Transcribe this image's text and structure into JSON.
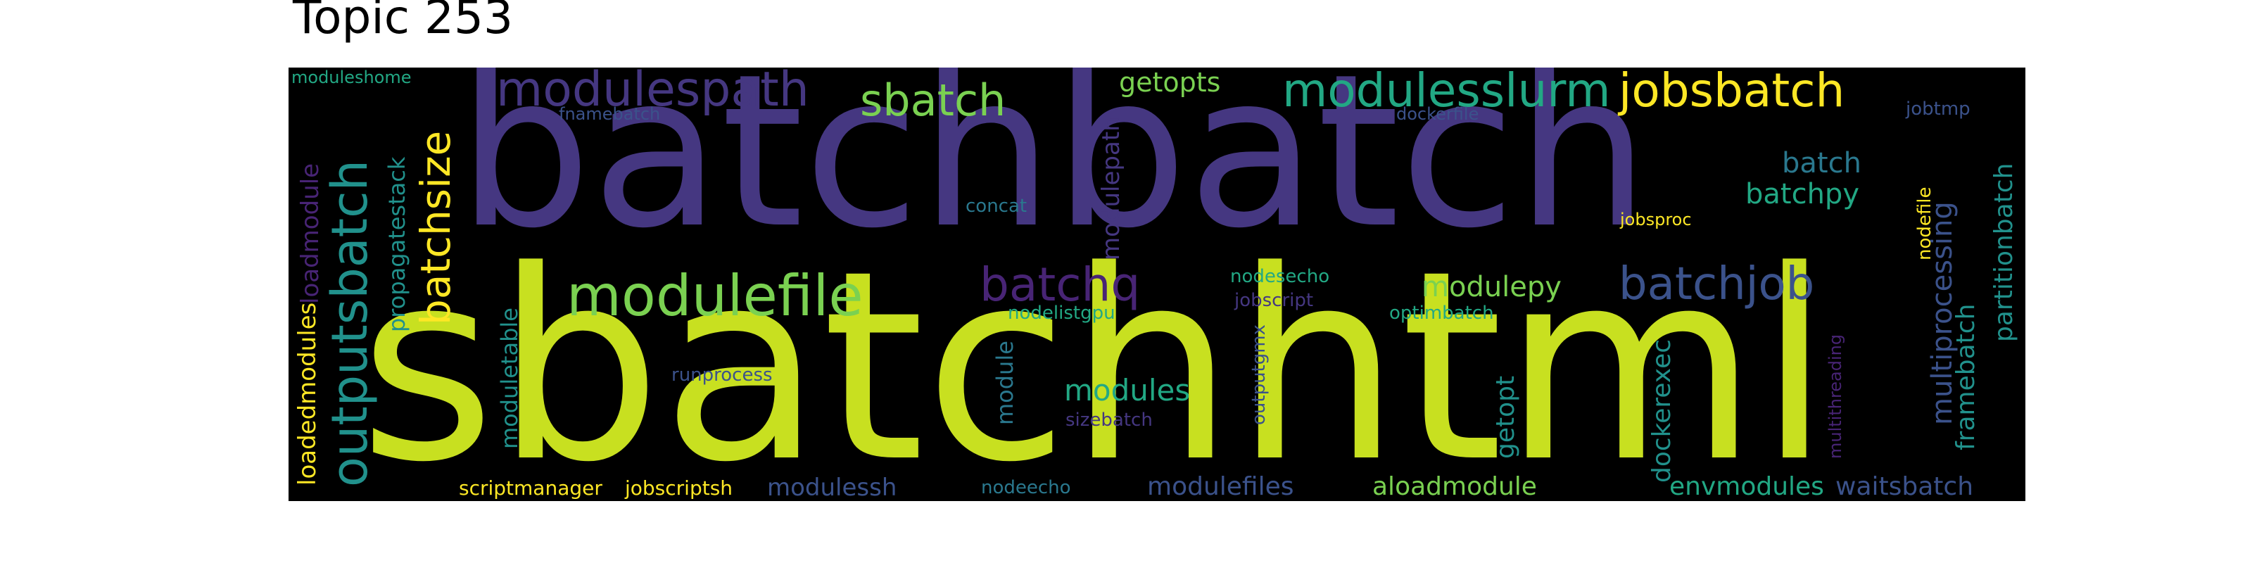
{
  "title": "Topic 253",
  "colors": {
    "background": "#000000",
    "yellow_green": "#c8e020",
    "indigo": "#453781",
    "teal": "#21918c",
    "green": "#5ec962",
    "purple": "#482475",
    "dark_blue": "#3b528b",
    "yellow": "#fde725"
  },
  "words": [
    {
      "text": "batchbatch",
      "color": "#453781"
    },
    {
      "text": "sbatchhtml",
      "color": "#c8e020"
    },
    {
      "text": "modulefile",
      "color": "#7ad151"
    },
    {
      "text": "outputsbatch",
      "color": "#21918c"
    },
    {
      "text": "batchsize",
      "color": "#fde725"
    },
    {
      "text": "modulespath",
      "color": "#453781"
    },
    {
      "text": "sbatch",
      "color": "#7ad151"
    },
    {
      "text": "modulesslurm",
      "color": "#22a884"
    },
    {
      "text": "jobsbatch",
      "color": "#fde725"
    },
    {
      "text": "batchq",
      "color": "#482475"
    },
    {
      "text": "batchjob",
      "color": "#3b528b"
    },
    {
      "text": "modulepy",
      "color": "#7ad151"
    },
    {
      "text": "modules",
      "color": "#22a884"
    },
    {
      "text": "modulepath",
      "color": "#453781"
    },
    {
      "text": "getopts",
      "color": "#7ad151"
    },
    {
      "text": "batch",
      "color": "#2a788e"
    },
    {
      "text": "batchpy",
      "color": "#22a884"
    },
    {
      "text": "multiprocessing",
      "color": "#3b528b"
    },
    {
      "text": "partitionbatch",
      "color": "#21918c"
    },
    {
      "text": "framebatch",
      "color": "#21918c"
    },
    {
      "text": "envmodules",
      "color": "#22a884"
    },
    {
      "text": "waitsbatch",
      "color": "#3b528b"
    },
    {
      "text": "aloadmodule",
      "color": "#7ad151"
    },
    {
      "text": "modulefiles",
      "color": "#3b528b"
    },
    {
      "text": "modulessh",
      "color": "#3b528b"
    },
    {
      "text": "dockerexec",
      "color": "#21918c"
    },
    {
      "text": "getopt",
      "color": "#21918c"
    },
    {
      "text": "module",
      "color": "#2a788e"
    },
    {
      "text": "loadedmodules",
      "color": "#fde725"
    },
    {
      "text": "loadmodule",
      "color": "#482475"
    },
    {
      "text": "propagatestack",
      "color": "#21918c"
    },
    {
      "text": "moduletable",
      "color": "#21918c"
    },
    {
      "text": "moduleshome",
      "color": "#22a884"
    },
    {
      "text": "fnamebatch",
      "color": "#3b528b"
    },
    {
      "text": "dockerfile",
      "color": "#3b528b"
    },
    {
      "text": "jobtmp",
      "color": "#3b528b"
    },
    {
      "text": "concat",
      "color": "#2a788e"
    },
    {
      "text": "jobsproc",
      "color": "#fde725"
    },
    {
      "text": "nodefile",
      "color": "#fde725"
    },
    {
      "text": "nodesecho",
      "color": "#22a884"
    },
    {
      "text": "jobscript",
      "color": "#453781"
    },
    {
      "text": "nodelistgpu",
      "color": "#22a884"
    },
    {
      "text": "optimbatch",
      "color": "#22a884"
    },
    {
      "text": "runprocess",
      "color": "#3b528b"
    },
    {
      "text": "sizebatch",
      "color": "#453781"
    },
    {
      "text": "outputgmx",
      "color": "#3b528b"
    },
    {
      "text": "multithreading",
      "color": "#482475"
    },
    {
      "text": "scriptmanager",
      "color": "#fde725"
    },
    {
      "text": "jobscriptsh",
      "color": "#fde725"
    },
    {
      "text": "nodeecho",
      "color": "#2a788e"
    }
  ]
}
